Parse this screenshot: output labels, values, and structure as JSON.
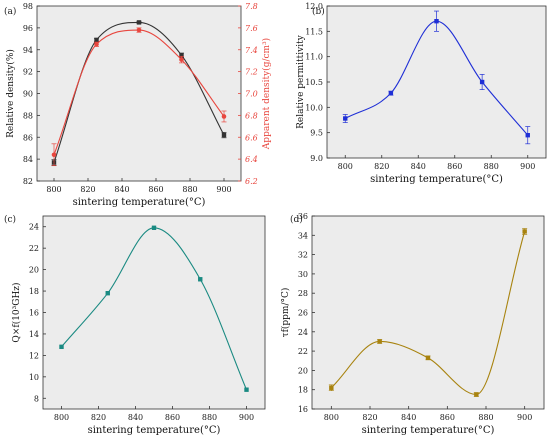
{
  "chart_data": [
    {
      "type": "line",
      "panel_label": "(a)",
      "xlabel": "sintering temperature(°C)",
      "ylabel": "Relative density(%)",
      "y2label": "Apparent density(g/cm³)",
      "xlim": [
        790,
        910
      ],
      "ylim": [
        82,
        98
      ],
      "y2lim": [
        6.2,
        7.8
      ],
      "xticks": [
        800,
        820,
        840,
        860,
        880,
        900
      ],
      "yticks": [
        82,
        84,
        86,
        88,
        90,
        92,
        94,
        96,
        98
      ],
      "y2ticks": [
        6.2,
        6.4,
        6.6,
        6.8,
        7.0,
        7.2,
        7.4,
        7.6,
        7.8
      ],
      "grid": false,
      "series": [
        {
          "axis": "left",
          "color": "#333333",
          "marker": "square",
          "x": [
            800,
            825,
            850,
            875,
            900
          ],
          "y": [
            83.7,
            94.9,
            96.5,
            93.5,
            86.2
          ],
          "err": [
            0.25,
            0.15,
            0.1,
            0.2,
            0.25
          ]
        },
        {
          "axis": "right",
          "color": "#e8463e",
          "marker": "circle",
          "x": [
            800,
            825,
            850,
            875,
            900
          ],
          "y": [
            6.44,
            7.45,
            7.58,
            7.31,
            6.79
          ],
          "err": [
            0.1,
            0.02,
            0.02,
            0.03,
            0.05
          ]
        }
      ]
    },
    {
      "type": "line",
      "panel_label": "(b)",
      "xlabel": "sintering temperature(°C)",
      "ylabel": "Relative permittivity",
      "xlim": [
        790,
        910
      ],
      "ylim": [
        9.0,
        12.0
      ],
      "xticks": [
        800,
        820,
        840,
        860,
        880,
        900
      ],
      "yticks": [
        9.0,
        9.5,
        10.0,
        10.5,
        11.0,
        11.5,
        12.0
      ],
      "grid": false,
      "series": [
        {
          "color": "#1f2fd6",
          "marker": "square",
          "x": [
            800,
            825,
            850,
            875,
            900
          ],
          "y": [
            9.78,
            10.28,
            11.7,
            10.5,
            9.45
          ],
          "err": [
            0.08,
            0.04,
            0.2,
            0.15,
            0.17
          ]
        }
      ]
    },
    {
      "type": "line",
      "panel_label": "(c)",
      "xlabel": "sintering temperature(°C)",
      "ylabel": "Q×f(10³GHz)",
      "xlim": [
        790,
        910
      ],
      "ylim": [
        7,
        25
      ],
      "xticks": [
        800,
        820,
        840,
        860,
        880,
        900
      ],
      "yticks": [
        8,
        10,
        12,
        14,
        16,
        18,
        20,
        22,
        24
      ],
      "grid": false,
      "series": [
        {
          "color": "#1a8a82",
          "marker": "square",
          "x": [
            800,
            825,
            850,
            875,
            900
          ],
          "y": [
            12.8,
            17.8,
            23.9,
            19.1,
            8.8
          ],
          "err": [
            0,
            0,
            0,
            0,
            0
          ]
        }
      ]
    },
    {
      "type": "line",
      "panel_label": "(d)",
      "xlabel": "sintering temperature(°C)",
      "ylabel": "τf(ppm/°C)",
      "xlim": [
        790,
        910
      ],
      "ylim": [
        16,
        36
      ],
      "xticks": [
        800,
        820,
        840,
        860,
        880,
        900
      ],
      "yticks": [
        16,
        18,
        20,
        22,
        24,
        26,
        28,
        30,
        32,
        34,
        36
      ],
      "grid": false,
      "series": [
        {
          "color": "#a8830f",
          "marker": "square",
          "x": [
            800,
            825,
            850,
            875,
            900
          ],
          "y": [
            18.2,
            23.0,
            21.3,
            17.5,
            34.4
          ],
          "err": [
            0.3,
            0.2,
            0.2,
            0.2,
            0.3
          ]
        }
      ]
    }
  ]
}
